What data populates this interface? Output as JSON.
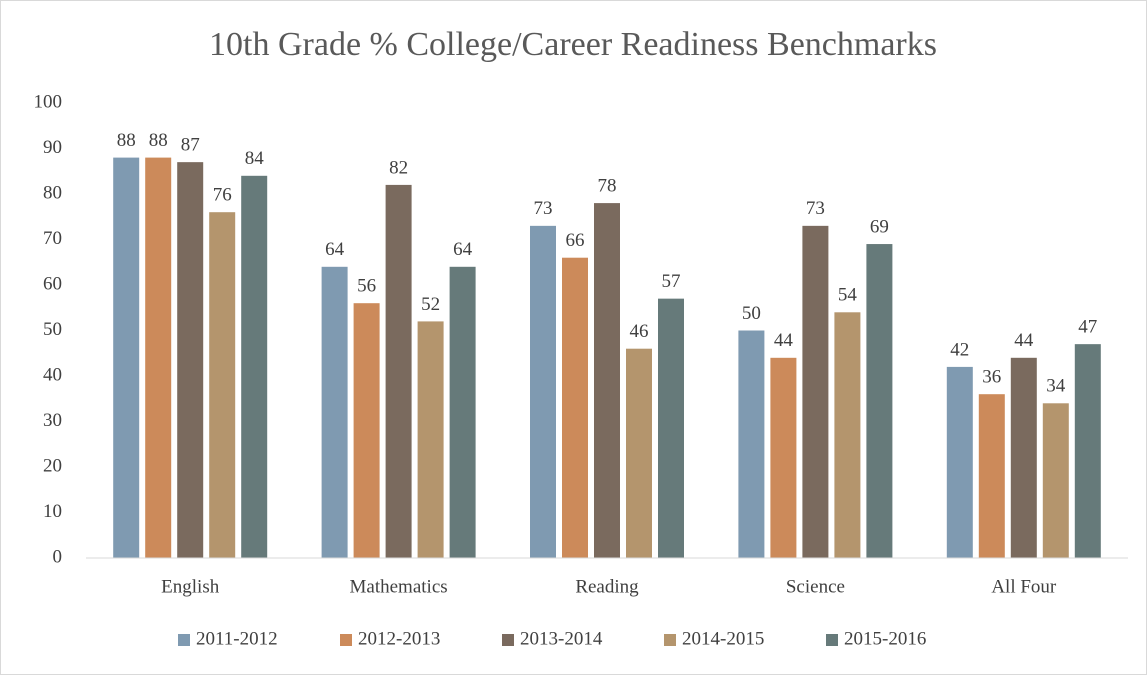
{
  "chart_data": {
    "type": "bar",
    "title": "10th Grade % College/Career Readiness Benchmarks",
    "categories": [
      "English",
      "Mathematics",
      "Reading",
      "Science",
      "All Four"
    ],
    "series": [
      {
        "name": "2011-2012",
        "color": "#7f9ab1",
        "values": [
          88,
          64,
          73,
          50,
          42
        ]
      },
      {
        "name": "2012-2013",
        "color": "#cc8a5a",
        "values": [
          88,
          56,
          66,
          44,
          36
        ]
      },
      {
        "name": "2013-2014",
        "color": "#7a6a5e",
        "values": [
          87,
          82,
          78,
          73,
          44
        ]
      },
      {
        "name": "2014-2015",
        "color": "#b4956d",
        "values": [
          76,
          52,
          46,
          54,
          34
        ]
      },
      {
        "name": "2015-2016",
        "color": "#667a7a",
        "values": [
          84,
          64,
          57,
          69,
          47
        ]
      }
    ],
    "ylim": [
      0,
      100
    ],
    "yticks": [
      0,
      10,
      20,
      30,
      40,
      50,
      60,
      70,
      80,
      90,
      100
    ],
    "grid": false,
    "legend": "bottom"
  }
}
